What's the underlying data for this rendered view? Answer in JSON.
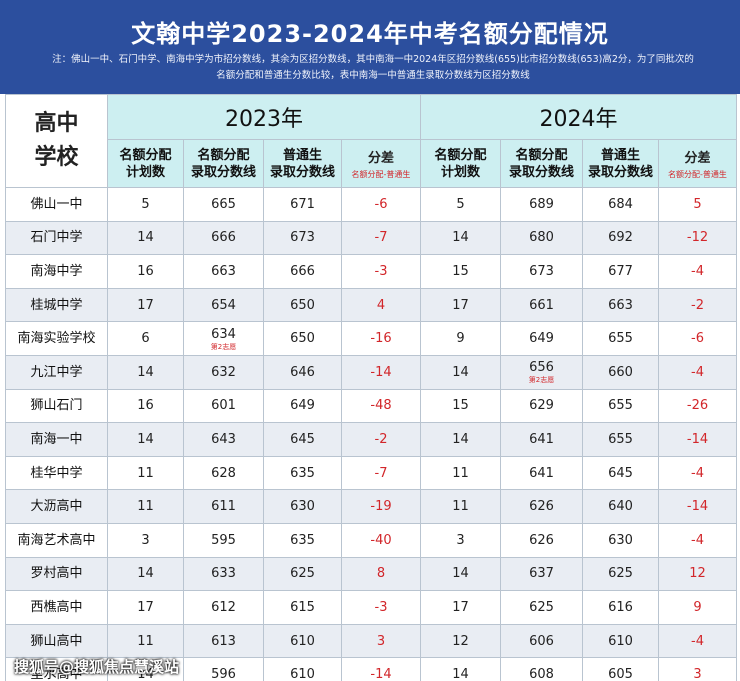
{
  "header": {
    "title": "文翰中学2023-2024年中考名额分配情况",
    "note_line1": "注：佛山一中、石门中学、南海中学为市招分数线，其余为区招分数线，其中南海一中2024年区招分数线(655)比市招分数线(653)高2分，为了同批次的",
    "note_line2": "名额分配和普通生分数比较，表中南海一中普通生录取分数线为区招分数线"
  },
  "table": {
    "school_header": [
      "高中",
      "学校"
    ],
    "year_2023": "2023年",
    "year_2024": "2024年",
    "sub_headers": [
      "名额分配计划数",
      "名额分配录取分数线",
      "普通生录取分数线",
      "分差"
    ],
    "sub_headers_display": [
      [
        "名额分配",
        "计划数"
      ],
      [
        "名额分配",
        "录取分数线"
      ],
      [
        "普通生",
        "录取分数线"
      ]
    ],
    "diff_label": "分差",
    "diff_note": "名额分配-普通生",
    "rows": [
      {
        "school": "佛山一中",
        "p23": "5",
        "a23": "665",
        "n23": "671",
        "d23": "-6",
        "p24": "5",
        "a24": "689",
        "n24": "684",
        "d24": "5",
        "note23": "",
        "note24": ""
      },
      {
        "school": "石门中学",
        "p23": "14",
        "a23": "666",
        "n23": "673",
        "d23": "-7",
        "p24": "14",
        "a24": "680",
        "n24": "692",
        "d24": "-12",
        "note23": "",
        "note24": ""
      },
      {
        "school": "南海中学",
        "p23": "16",
        "a23": "663",
        "n23": "666",
        "d23": "-3",
        "p24": "15",
        "a24": "673",
        "n24": "677",
        "d24": "-4",
        "note23": "",
        "note24": ""
      },
      {
        "school": "桂城中学",
        "p23": "17",
        "a23": "654",
        "n23": "650",
        "d23": "4",
        "p24": "17",
        "a24": "661",
        "n24": "663",
        "d24": "-2",
        "note23": "",
        "note24": ""
      },
      {
        "school": "南海实验学校",
        "p23": "6",
        "a23": "634",
        "n23": "650",
        "d23": "-16",
        "p24": "9",
        "a24": "649",
        "n24": "655",
        "d24": "-6",
        "note23": "第2志愿",
        "note24": ""
      },
      {
        "school": "九江中学",
        "p23": "14",
        "a23": "632",
        "n23": "646",
        "d23": "-14",
        "p24": "14",
        "a24": "656",
        "n24": "660",
        "d24": "-4",
        "note23": "",
        "note24": "第2志愿"
      },
      {
        "school": "狮山石门",
        "p23": "16",
        "a23": "601",
        "n23": "649",
        "d23": "-48",
        "p24": "15",
        "a24": "629",
        "n24": "655",
        "d24": "-26",
        "note23": "",
        "note24": ""
      },
      {
        "school": "南海一中",
        "p23": "14",
        "a23": "643",
        "n23": "645",
        "d23": "-2",
        "p24": "14",
        "a24": "641",
        "n24": "655",
        "d24": "-14",
        "note23": "",
        "note24": ""
      },
      {
        "school": "桂华中学",
        "p23": "11",
        "a23": "628",
        "n23": "635",
        "d23": "-7",
        "p24": "11",
        "a24": "641",
        "n24": "645",
        "d24": "-4",
        "note23": "",
        "note24": ""
      },
      {
        "school": "大沥高中",
        "p23": "11",
        "a23": "611",
        "n23": "630",
        "d23": "-19",
        "p24": "11",
        "a24": "626",
        "n24": "640",
        "d24": "-14",
        "note23": "",
        "note24": ""
      },
      {
        "school": "南海艺术高中",
        "p23": "3",
        "a23": "595",
        "n23": "635",
        "d23": "-40",
        "p24": "3",
        "a24": "626",
        "n24": "630",
        "d24": "-4",
        "note23": "",
        "note24": ""
      },
      {
        "school": "罗村高中",
        "p23": "14",
        "a23": "633",
        "n23": "625",
        "d23": "8",
        "p24": "14",
        "a24": "637",
        "n24": "625",
        "d24": "12",
        "note23": "",
        "note24": ""
      },
      {
        "school": "西樵高中",
        "p23": "17",
        "a23": "612",
        "n23": "615",
        "d23": "-3",
        "p24": "17",
        "a24": "625",
        "n24": "616",
        "d24": "9",
        "note23": "",
        "note24": ""
      },
      {
        "school": "狮山高中",
        "p23": "11",
        "a23": "613",
        "n23": "610",
        "d23": "3",
        "p24": "12",
        "a24": "606",
        "n24": "610",
        "d24": "-4",
        "note23": "",
        "note24": ""
      },
      {
        "school": "里水高中",
        "p23": "14",
        "a23": "596",
        "n23": "610",
        "d23": "-14",
        "p24": "14",
        "a24": "608",
        "n24": "605",
        "d24": "3",
        "note23": "",
        "note24": ""
      }
    ]
  },
  "watermark": "搜狐号@搜狐焦点慧溪站",
  "colors": {
    "header_bg": "#2c4f9e",
    "subheader_bg": "#cdeff1",
    "stripe_bg": "#e9edf3",
    "diff_red": "#d2262a"
  }
}
